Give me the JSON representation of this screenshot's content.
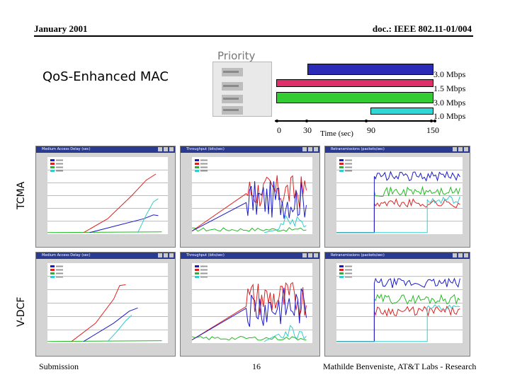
{
  "header": {
    "date": "January 2001",
    "doc": "doc.: IEEE 802.11-01/004"
  },
  "slide": {
    "title": "QoS-Enhanced MAC",
    "priority_label": "Priority",
    "row_labels": [
      "TCMA",
      "V-DCF"
    ]
  },
  "timeline": {
    "axis_label": "Time (sec)",
    "ticks": [
      "0",
      "30",
      "90",
      "150"
    ],
    "flows": [
      {
        "rate": "3.0 Mbps",
        "color": "#2b2bb8",
        "start": 30,
        "end": 150
      },
      {
        "rate": "1.5 Mbps",
        "color": "#e0306a",
        "start": 0,
        "end": 150
      },
      {
        "rate": "3.0 Mbps",
        "color": "#33cc33",
        "start": 0,
        "end": 150
      },
      {
        "rate": "1.0 Mbps",
        "color": "#33d6d6",
        "start": 90,
        "end": 150
      }
    ]
  },
  "plot_colors": {
    "call1": "#1a1acc",
    "call2": "#e02020",
    "call3": "#22bb22",
    "call4": "#33cccc"
  },
  "footer": {
    "left": "Submission",
    "page": "16",
    "right": "Mathilde Benveniste, AT&T Labs - Research"
  }
}
